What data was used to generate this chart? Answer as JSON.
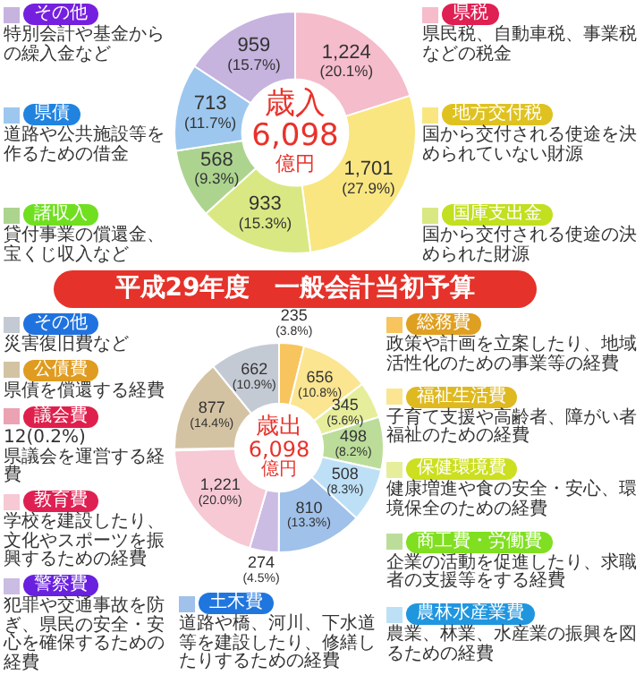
{
  "chart_data": [
    {
      "type": "donut",
      "legend": "left",
      "categories": [
        "県税",
        "地方交付税",
        "国庫支出金",
        "諸収入",
        "県債",
        "その他"
      ],
      "values": [
        1224,
        1701,
        933,
        568,
        713,
        959
      ],
      "colors": [
        "#f5bccb",
        "#f9e680",
        "#d9e883",
        "#acd48f",
        "#9dc7ee",
        "#c6b3de"
      ],
      "value_labels": [
        "1,224\n(20.1%)",
        "1,701\n(27.9%)",
        "933\n(15.3%)",
        "568\n(9.3%)",
        "713\n(11.7%)",
        "959\n(15.7%)"
      ],
      "annotations": [
        "歳入",
        "6,098",
        "億円",
        "県民税、自動車税、事業税などの税金",
        "国から交付される使途を決められていない財源",
        "国から交付される使途の決められた財源",
        "貸付事業の償還金、宝くじ収入など",
        "道路や公共施設等を作るための借金",
        "特別会計や基金からの繰入金など"
      ]
    },
    {
      "type": "donut",
      "legend": "left",
      "title": "平成29年度　一般会計当初予算",
      "categories": [
        "総務費",
        "福祉生活費",
        "保健環境費",
        "商工費・労働費",
        "農林水産業費",
        "土木費",
        "警察費",
        "教育費",
        "議会費",
        "公債費",
        "その他"
      ],
      "values": [
        235,
        656,
        345,
        498,
        508,
        810,
        274,
        1221,
        12,
        877,
        662
      ],
      "colors": [
        "#f8c45e",
        "#fbe591",
        "#e6ee9c",
        "#bcdd9a",
        "#bde0f6",
        "#9fc1ea",
        "#cbbce3",
        "#f6c9d5",
        "#eba2b3",
        "#d4c3a3",
        "#c3cad3"
      ],
      "value_labels": [
        "235\n(3.8%)",
        "656\n(10.8%)",
        "345\n(5.6%)",
        "498\n(8.2%)",
        "508\n(8.3%)",
        "810\n(13.3%)",
        "274\n(4.5%)",
        "1,221\n(20.0%)",
        "12(0.2%)",
        "877\n(14.4%)",
        "662\n(10.9%)"
      ],
      "annotations": [
        "歳出",
        "6,098",
        "億円",
        "政策や計画を立案したり、地域活性化のための事業等の経費",
        "子育て支援や高齢者、障がい者福祉のための経費",
        "健康増進や食の安全・安心、環境保全のための経費",
        "企業の活動を促進したり、求職者の支援等をする経費",
        "農業、林業、水産業の振興を図るための経費",
        "道路や橋、河川、下水道等を建設したり、修繕したりするための経費",
        "犯罪や交通事故を防ぎ、県民の安全・安心を確保するための経費",
        "学校を建設したり、文化やスポーツを振興するための経費",
        "県議会を運営する経費",
        "県債を償還する経費",
        "災害復旧費など"
      ]
    }
  ]
}
